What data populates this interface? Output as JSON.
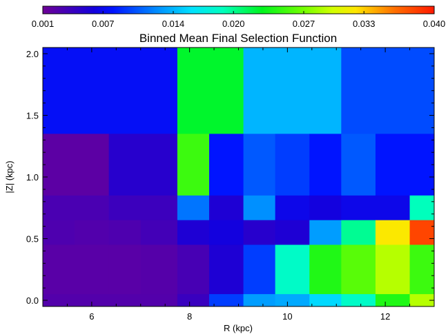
{
  "chart_data": {
    "type": "heatmap",
    "title": "Binned Mean Final Selection Function",
    "xlabel": "R (kpc)",
    "ylabel": "|Z| (kpc)",
    "xlim": [
      5,
      13
    ],
    "ylim": [
      -0.05,
      2.05
    ],
    "grid": false,
    "x_ticks": [
      6,
      8,
      10,
      12
    ],
    "x_tick_labels": [
      "6",
      "8",
      "10",
      "12"
    ],
    "y_ticks": [
      0.0,
      0.5,
      1.0,
      1.5,
      2.0
    ],
    "y_tick_labels": [
      "0.0",
      "0.5",
      "1.0",
      "1.5",
      "2.0"
    ],
    "colorbar": {
      "placement": "top",
      "colormap": "rainbow",
      "min": 0.001,
      "max": 0.04,
      "tick_values": [
        0.001,
        0.007,
        0.014,
        0.02,
        0.027,
        0.033,
        0.04
      ],
      "tick_labels": [
        "0.001",
        "0.007",
        "0.014",
        "0.020",
        "0.027",
        "0.033",
        "0.040"
      ]
    },
    "cells": [
      {
        "x0": 5.0,
        "x1": 7.75,
        "y0": 1.35,
        "y1": 2.05,
        "value": 0.0075
      },
      {
        "x0": 7.75,
        "x1": 9.1,
        "y0": 1.35,
        "y1": 2.05,
        "value": 0.0225
      },
      {
        "x0": 9.1,
        "x1": 11.1,
        "y0": 1.35,
        "y1": 2.05,
        "value": 0.014
      },
      {
        "x0": 11.1,
        "x1": 13.0,
        "y0": 1.35,
        "y1": 2.05,
        "value": 0.01
      },
      {
        "x0": 5.0,
        "x1": 6.35,
        "y0": 0.85,
        "y1": 1.35,
        "value": 0.002
      },
      {
        "x0": 6.35,
        "x1": 7.75,
        "y0": 0.85,
        "y1": 1.35,
        "value": 0.005
      },
      {
        "x0": 7.75,
        "x1": 8.4,
        "y0": 0.85,
        "y1": 1.35,
        "value": 0.025
      },
      {
        "x0": 8.4,
        "x1": 9.1,
        "y0": 0.85,
        "y1": 1.35,
        "value": 0.008
      },
      {
        "x0": 9.1,
        "x1": 9.75,
        "y0": 0.85,
        "y1": 1.35,
        "value": 0.0105
      },
      {
        "x0": 9.75,
        "x1": 10.45,
        "y0": 0.85,
        "y1": 1.35,
        "value": 0.0095
      },
      {
        "x0": 10.45,
        "x1": 11.1,
        "y0": 0.85,
        "y1": 1.35,
        "value": 0.008
      },
      {
        "x0": 11.1,
        "x1": 11.8,
        "y0": 0.85,
        "y1": 1.35,
        "value": 0.0105
      },
      {
        "x0": 11.8,
        "x1": 13.0,
        "y0": 0.85,
        "y1": 1.35,
        "value": 0.008
      },
      {
        "x0": 5.0,
        "x1": 6.35,
        "y0": 0.65,
        "y1": 0.85,
        "value": 0.003
      },
      {
        "x0": 6.35,
        "x1": 7.75,
        "y0": 0.65,
        "y1": 0.85,
        "value": 0.0038
      },
      {
        "x0": 7.75,
        "x1": 8.4,
        "y0": 0.65,
        "y1": 0.85,
        "value": 0.0115
      },
      {
        "x0": 8.4,
        "x1": 9.1,
        "y0": 0.65,
        "y1": 0.85,
        "value": 0.0055
      },
      {
        "x0": 9.1,
        "x1": 9.75,
        "y0": 0.65,
        "y1": 0.85,
        "value": 0.0125
      },
      {
        "x0": 9.75,
        "x1": 10.45,
        "y0": 0.65,
        "y1": 0.85,
        "value": 0.0068
      },
      {
        "x0": 10.45,
        "x1": 11.1,
        "y0": 0.65,
        "y1": 0.85,
        "value": 0.0062
      },
      {
        "x0": 11.1,
        "x1": 12.5,
        "y0": 0.65,
        "y1": 0.85,
        "value": 0.0068
      },
      {
        "x0": 12.5,
        "x1": 13.0,
        "y0": 0.65,
        "y1": 0.85,
        "value": 0.019
      },
      {
        "x0": 5.0,
        "x1": 5.65,
        "y0": 0.45,
        "y1": 0.65,
        "value": 0.0028
      },
      {
        "x0": 5.65,
        "x1": 6.35,
        "y0": 0.45,
        "y1": 0.65,
        "value": 0.0026
      },
      {
        "x0": 6.35,
        "x1": 7.0,
        "y0": 0.45,
        "y1": 0.65,
        "value": 0.0028
      },
      {
        "x0": 7.0,
        "x1": 7.75,
        "y0": 0.45,
        "y1": 0.65,
        "value": 0.0034
      },
      {
        "x0": 7.75,
        "x1": 8.4,
        "y0": 0.45,
        "y1": 0.65,
        "value": 0.0055
      },
      {
        "x0": 8.4,
        "x1": 9.1,
        "y0": 0.45,
        "y1": 0.65,
        "value": 0.0062
      },
      {
        "x0": 9.1,
        "x1": 9.75,
        "y0": 0.45,
        "y1": 0.65,
        "value": 0.005
      },
      {
        "x0": 9.75,
        "x1": 10.45,
        "y0": 0.45,
        "y1": 0.65,
        "value": 0.0055
      },
      {
        "x0": 10.45,
        "x1": 11.1,
        "y0": 0.45,
        "y1": 0.65,
        "value": 0.013
      },
      {
        "x0": 11.1,
        "x1": 11.8,
        "y0": 0.45,
        "y1": 0.65,
        "value": 0.02
      },
      {
        "x0": 11.8,
        "x1": 12.5,
        "y0": 0.45,
        "y1": 0.65,
        "value": 0.032
      },
      {
        "x0": 12.5,
        "x1": 13.0,
        "y0": 0.45,
        "y1": 0.65,
        "value": 0.038
      },
      {
        "x0": 5.0,
        "x1": 6.35,
        "y0": 0.05,
        "y1": 0.45,
        "value": 0.0022
      },
      {
        "x0": 6.35,
        "x1": 7.0,
        "y0": 0.05,
        "y1": 0.45,
        "value": 0.0022
      },
      {
        "x0": 7.0,
        "x1": 7.75,
        "y0": 0.05,
        "y1": 0.45,
        "value": 0.0024
      },
      {
        "x0": 7.75,
        "x1": 8.4,
        "y0": 0.05,
        "y1": 0.45,
        "value": 0.0032
      },
      {
        "x0": 8.4,
        "x1": 9.1,
        "y0": 0.05,
        "y1": 0.45,
        "value": 0.0055
      },
      {
        "x0": 9.1,
        "x1": 9.75,
        "y0": 0.05,
        "y1": 0.45,
        "value": 0.0095
      },
      {
        "x0": 9.75,
        "x1": 10.45,
        "y0": 0.05,
        "y1": 0.45,
        "value": 0.0185
      },
      {
        "x0": 10.45,
        "x1": 11.1,
        "y0": 0.05,
        "y1": 0.45,
        "value": 0.024
      },
      {
        "x0": 11.1,
        "x1": 11.8,
        "y0": 0.05,
        "y1": 0.45,
        "value": 0.026
      },
      {
        "x0": 11.8,
        "x1": 12.5,
        "y0": 0.05,
        "y1": 0.45,
        "value": 0.029
      },
      {
        "x0": 12.5,
        "x1": 13.0,
        "y0": 0.05,
        "y1": 0.45,
        "value": 0.025
      },
      {
        "x0": 5.0,
        "x1": 7.75,
        "y0": -0.05,
        "y1": 0.05,
        "value": 0.0025
      },
      {
        "x0": 7.75,
        "x1": 8.4,
        "y0": -0.05,
        "y1": 0.05,
        "value": 0.004
      },
      {
        "x0": 8.4,
        "x1": 9.1,
        "y0": -0.05,
        "y1": 0.05,
        "value": 0.0095
      },
      {
        "x0": 9.1,
        "x1": 9.75,
        "y0": -0.05,
        "y1": 0.05,
        "value": 0.013
      },
      {
        "x0": 9.75,
        "x1": 10.45,
        "y0": -0.05,
        "y1": 0.05,
        "value": 0.0135
      },
      {
        "x0": 10.45,
        "x1": 11.1,
        "y0": -0.05,
        "y1": 0.05,
        "value": 0.0155
      },
      {
        "x0": 11.1,
        "x1": 11.8,
        "y0": -0.05,
        "y1": 0.05,
        "value": 0.0185
      },
      {
        "x0": 11.8,
        "x1": 12.5,
        "y0": -0.05,
        "y1": 0.05,
        "value": 0.024
      },
      {
        "x0": 12.5,
        "x1": 13.0,
        "y0": -0.05,
        "y1": 0.05,
        "value": 0.029
      }
    ]
  }
}
